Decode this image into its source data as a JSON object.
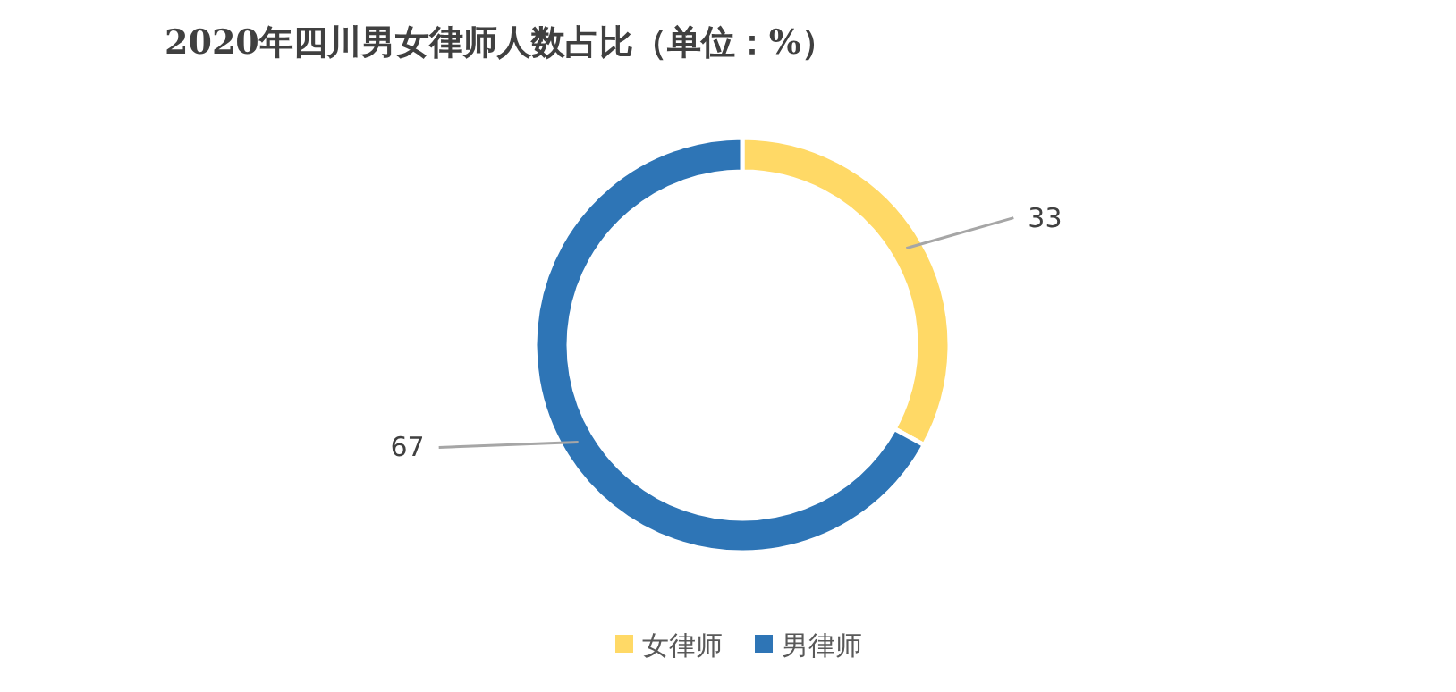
{
  "chart_data": {
    "type": "donut",
    "title": "2020年四川男女律师人数占比（单位：%）",
    "categories": [
      "女律师",
      "男律师"
    ],
    "values": [
      33,
      67
    ],
    "colors": [
      "#ffd966",
      "#2e75b6"
    ],
    "data_labels": true,
    "legend": "bottom"
  }
}
